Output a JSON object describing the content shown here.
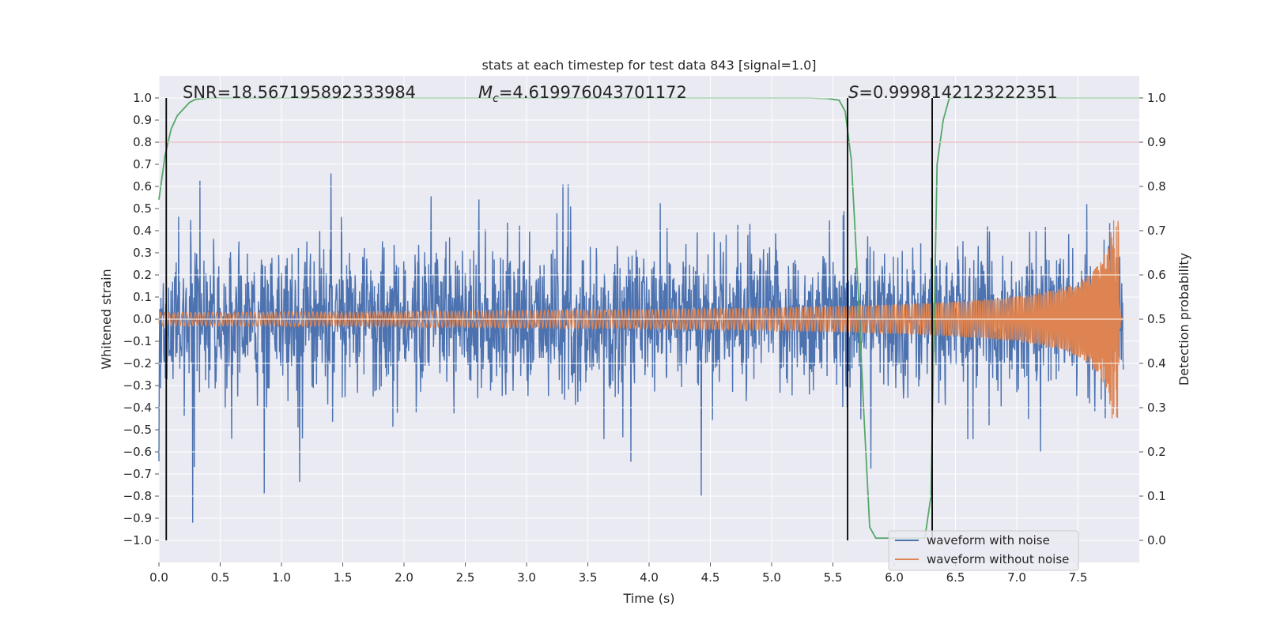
{
  "chart_data": {
    "type": "line",
    "title": "stats at each timestep for test data 843 [signal=1.0]",
    "xlabel": "Time (s)",
    "ylabel": "Whitened strain",
    "y2label": "Detection probability",
    "xlim": [
      0.0,
      8.0
    ],
    "ylim": [
      -1.1,
      1.1
    ],
    "y2lim": [
      -0.05,
      1.05
    ],
    "xticks": [
      0.0,
      0.5,
      1.0,
      1.5,
      2.0,
      2.5,
      3.0,
      3.5,
      4.0,
      4.5,
      5.0,
      5.5,
      6.0,
      6.5,
      7.0,
      7.5
    ],
    "xtick_labels": [
      "0.0",
      "0.5",
      "1.0",
      "1.5",
      "2.0",
      "2.5",
      "3.0",
      "3.5",
      "4.0",
      "4.5",
      "5.0",
      "5.5",
      "6.0",
      "6.5",
      "7.0",
      "7.5"
    ],
    "yticks": [
      1.0,
      0.9,
      0.8,
      0.7,
      0.6,
      0.5,
      0.4,
      0.3,
      0.2,
      0.1,
      0.0,
      -0.1,
      -0.2,
      -0.3,
      -0.4,
      -0.5,
      -0.6,
      -0.7,
      -0.8,
      -0.9,
      -1.0
    ],
    "ytick_labels": [
      "1.0",
      "0.9",
      "0.8",
      "0.7",
      "0.6",
      "0.5",
      "0.4",
      "0.3",
      "0.2",
      "0.1",
      "0.0",
      "−0.1",
      "−0.2",
      "−0.3",
      "−0.4",
      "−0.5",
      "−0.6",
      "−0.7",
      "−0.8",
      "−0.9",
      "−1.0"
    ],
    "y2ticks": [
      1.0,
      0.9,
      0.8,
      0.7,
      0.6,
      0.5,
      0.4,
      0.3,
      0.2,
      0.1,
      0.0
    ],
    "y2tick_labels": [
      "1.0",
      "0.9",
      "0.8",
      "0.7",
      "0.6",
      "0.5",
      "0.4",
      "0.3",
      "0.2",
      "0.1",
      "0.0"
    ],
    "annotations": {
      "snr": "SNR=18.567195892333984",
      "mc_symbol": "M",
      "mc_sub": "c",
      "mc_value": "=4.619976043701172",
      "s_symbol": "S",
      "s_value": "=0.9998142123222351"
    },
    "series": [
      {
        "name": "waveform with noise",
        "color": "#4c72b0",
        "description": "noisy whitened strain, roughly +/-0.35 typical with spikes to about +/-0.9",
        "noise_std": 0.16,
        "duration": 7.87
      },
      {
        "name": "waveform without noise",
        "color": "#dd8452",
        "description": "chirp signal whose amplitude grows from ~0.03 to ~0.45 at merger near t=7.83 s",
        "amplitude_start": 0.03,
        "amplitude_peak": 0.45,
        "merger_time": 7.83,
        "duration": 8.0
      },
      {
        "name": "detection probability",
        "color": "#55a868",
        "axis": "right",
        "points": [
          [
            0.0,
            0.77
          ],
          [
            0.05,
            0.87
          ],
          [
            0.1,
            0.93
          ],
          [
            0.15,
            0.96
          ],
          [
            0.2,
            0.975
          ],
          [
            0.25,
            0.99
          ],
          [
            0.3,
            0.997
          ],
          [
            0.4,
            1.0
          ],
          [
            5.3,
            1.0
          ],
          [
            5.45,
            0.999
          ],
          [
            5.55,
            0.995
          ],
          [
            5.6,
            0.97
          ],
          [
            5.65,
            0.86
          ],
          [
            5.7,
            0.6
          ],
          [
            5.75,
            0.3
          ],
          [
            5.8,
            0.03
          ],
          [
            5.85,
            0.005
          ],
          [
            6.25,
            0.005
          ],
          [
            6.3,
            0.1
          ],
          [
            6.35,
            0.85
          ],
          [
            6.4,
            0.95
          ],
          [
            6.45,
            1.0
          ],
          [
            8.0,
            1.0
          ]
        ]
      }
    ],
    "threshold": {
      "value": 0.9,
      "axis": "right",
      "color": "#c44e52"
    },
    "vertical_markers": [
      0.06,
      5.62,
      6.31
    ],
    "legend": {
      "position": "lower-right",
      "entries": [
        "waveform with noise",
        "waveform without noise"
      ]
    },
    "style": {
      "plot_bg": "#eaeaf2",
      "grid": "#ffffff",
      "marker_color": "#000000"
    }
  }
}
